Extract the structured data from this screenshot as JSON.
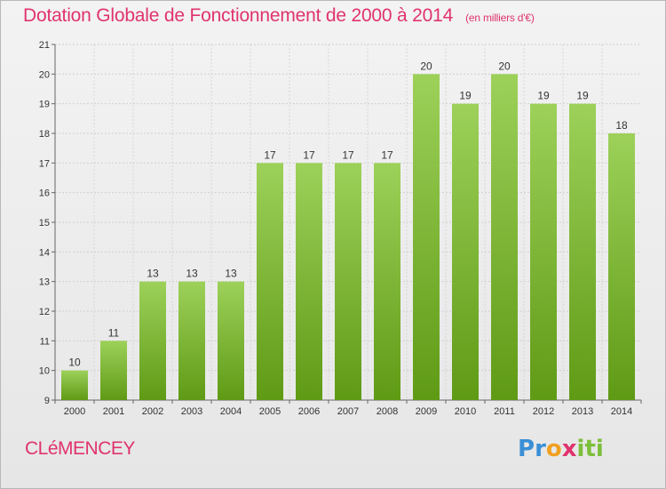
{
  "header": {
    "title": "Dotation Globale de Fonctionnement de 2000 à 2014",
    "unit": "(en milliers d'€)"
  },
  "footer": {
    "commune": "CLéMENCEY",
    "logo_letters": [
      {
        "char": "P",
        "color": "#3a8fd6"
      },
      {
        "char": "r",
        "color": "#3a8fd6"
      },
      {
        "char": "o",
        "color": "#f0a020"
      },
      {
        "char": "x",
        "color": "#e0336e"
      },
      {
        "char": "i",
        "color": "#7cbf3a"
      },
      {
        "char": "t",
        "color": "#7cbf3a"
      },
      {
        "char": "i",
        "color": "#7cbf3a"
      }
    ]
  },
  "chart_data": {
    "type": "bar",
    "categories": [
      "2000",
      "2001",
      "2002",
      "2003",
      "2004",
      "2005",
      "2006",
      "2007",
      "2008",
      "2009",
      "2010",
      "2011",
      "2012",
      "2013",
      "2014"
    ],
    "values": [
      10,
      11,
      13,
      13,
      13,
      17,
      17,
      17,
      17,
      20,
      19,
      20,
      19,
      19,
      18
    ],
    "title": "Dotation Globale de Fonctionnement de 2000 à 2014",
    "subtitle": "(en milliers d'€)",
    "xlabel": "",
    "ylabel": "",
    "ylim": [
      9,
      21
    ],
    "yticks": [
      9,
      10,
      11,
      12,
      13,
      14,
      15,
      16,
      17,
      18,
      19,
      20,
      21
    ],
    "grid": true,
    "bar_color_top": "#9dd15a",
    "bar_color_bottom": "#5f9a15"
  }
}
